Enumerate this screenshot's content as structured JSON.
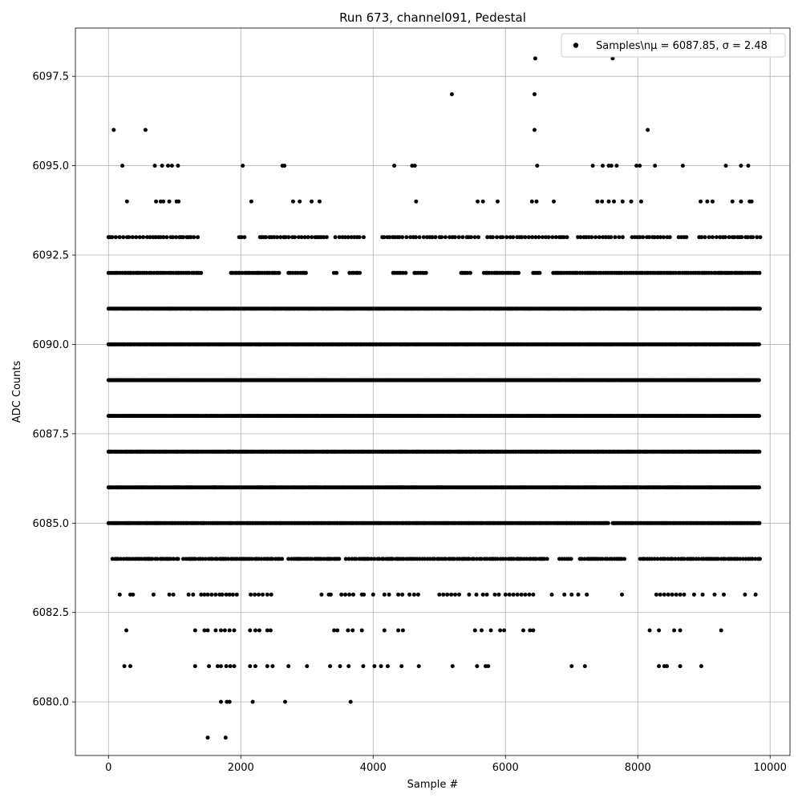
{
  "chart_data": {
    "type": "scatter",
    "title": "Run 673, channel091, Pedestal",
    "xlabel": "Sample #",
    "ylabel": "ADC Counts",
    "xlim": [
      -500,
      10300
    ],
    "ylim": [
      6078.5,
      6098.85
    ],
    "x_ticks": [
      0,
      2000,
      4000,
      6000,
      8000,
      10000
    ],
    "x_tick_labels": [
      "0",
      "2000",
      "4000",
      "6000",
      "8000",
      "10000"
    ],
    "y_ticks": [
      6080.0,
      6082.5,
      6085.0,
      6087.5,
      6090.0,
      6092.5,
      6095.0,
      6097.5
    ],
    "y_tick_labels": [
      "6080.0",
      "6082.5",
      "6085.0",
      "6087.5",
      "6090.0",
      "6092.5",
      "6095.0",
      "6097.5"
    ],
    "grid": true,
    "legend_position": "top-right",
    "marker_color": "#000000",
    "series": [
      {
        "name": "Samples\\nμ = 6087.85, σ = 2.48",
        "x_range": [
          0,
          9850
        ],
        "mean": 6087.85,
        "std": 2.48,
        "dense_levels": [
          6084,
          6085,
          6086,
          6087,
          6088,
          6089,
          6090,
          6091,
          6092,
          6093
        ],
        "points": [
          {
            "x": 80,
            "y": 6096
          },
          {
            "x": 560,
            "y": 6096
          },
          {
            "x": 8150,
            "y": 6096
          },
          {
            "x": 6440,
            "y": 6096
          },
          {
            "x": 5190,
            "y": 6097
          },
          {
            "x": 6440,
            "y": 6097
          },
          {
            "x": 6450,
            "y": 6098
          },
          {
            "x": 7620,
            "y": 6098
          },
          {
            "x": 210,
            "y": 6095
          },
          {
            "x": 700,
            "y": 6095
          },
          {
            "x": 810,
            "y": 6095
          },
          {
            "x": 900,
            "y": 6095
          },
          {
            "x": 960,
            "y": 6095
          },
          {
            "x": 1050,
            "y": 6095
          },
          {
            "x": 2030,
            "y": 6095
          },
          {
            "x": 2630,
            "y": 6095
          },
          {
            "x": 2660,
            "y": 6095
          },
          {
            "x": 4320,
            "y": 6095
          },
          {
            "x": 4590,
            "y": 6095
          },
          {
            "x": 4630,
            "y": 6095
          },
          {
            "x": 6480,
            "y": 6095
          },
          {
            "x": 7320,
            "y": 6095
          },
          {
            "x": 7470,
            "y": 6095
          },
          {
            "x": 7560,
            "y": 6095
          },
          {
            "x": 7600,
            "y": 6095
          },
          {
            "x": 7680,
            "y": 6095
          },
          {
            "x": 7980,
            "y": 6095
          },
          {
            "x": 8030,
            "y": 6095
          },
          {
            "x": 8260,
            "y": 6095
          },
          {
            "x": 8680,
            "y": 6095
          },
          {
            "x": 9330,
            "y": 6095
          },
          {
            "x": 9560,
            "y": 6095
          },
          {
            "x": 9670,
            "y": 6095
          },
          {
            "x": 280,
            "y": 6094
          },
          {
            "x": 720,
            "y": 6094
          },
          {
            "x": 790,
            "y": 6094
          },
          {
            "x": 830,
            "y": 6094
          },
          {
            "x": 920,
            "y": 6094
          },
          {
            "x": 1030,
            "y": 6094
          },
          {
            "x": 1060,
            "y": 6094
          },
          {
            "x": 2160,
            "y": 6094
          },
          {
            "x": 2790,
            "y": 6094
          },
          {
            "x": 2890,
            "y": 6094
          },
          {
            "x": 3070,
            "y": 6094
          },
          {
            "x": 3190,
            "y": 6094
          },
          {
            "x": 4650,
            "y": 6094
          },
          {
            "x": 5580,
            "y": 6094
          },
          {
            "x": 5660,
            "y": 6094
          },
          {
            "x": 5880,
            "y": 6094
          },
          {
            "x": 6400,
            "y": 6094
          },
          {
            "x": 6470,
            "y": 6094
          },
          {
            "x": 6730,
            "y": 6094
          },
          {
            "x": 7390,
            "y": 6094
          },
          {
            "x": 7460,
            "y": 6094
          },
          {
            "x": 7560,
            "y": 6094
          },
          {
            "x": 7640,
            "y": 6094
          },
          {
            "x": 7770,
            "y": 6094
          },
          {
            "x": 7900,
            "y": 6094
          },
          {
            "x": 8050,
            "y": 6094
          },
          {
            "x": 8950,
            "y": 6094
          },
          {
            "x": 9050,
            "y": 6094
          },
          {
            "x": 9130,
            "y": 6094
          },
          {
            "x": 9430,
            "y": 6094
          },
          {
            "x": 9560,
            "y": 6094
          },
          {
            "x": 9690,
            "y": 6094
          },
          {
            "x": 9720,
            "y": 6094
          },
          {
            "x": 170,
            "y": 6083
          },
          {
            "x": 330,
            "y": 6083
          },
          {
            "x": 370,
            "y": 6083
          },
          {
            "x": 680,
            "y": 6083
          },
          {
            "x": 920,
            "y": 6083
          },
          {
            "x": 980,
            "y": 6083
          },
          {
            "x": 1210,
            "y": 6083
          },
          {
            "x": 1280,
            "y": 6083
          },
          {
            "x": 1400,
            "y": 6083
          },
          {
            "x": 1450,
            "y": 6083
          },
          {
            "x": 1500,
            "y": 6083
          },
          {
            "x": 1560,
            "y": 6083
          },
          {
            "x": 1620,
            "y": 6083
          },
          {
            "x": 1680,
            "y": 6083
          },
          {
            "x": 1720,
            "y": 6083
          },
          {
            "x": 1780,
            "y": 6083
          },
          {
            "x": 1830,
            "y": 6083
          },
          {
            "x": 1880,
            "y": 6083
          },
          {
            "x": 1940,
            "y": 6083
          },
          {
            "x": 2150,
            "y": 6083
          },
          {
            "x": 2210,
            "y": 6083
          },
          {
            "x": 2270,
            "y": 6083
          },
          {
            "x": 2330,
            "y": 6083
          },
          {
            "x": 2400,
            "y": 6083
          },
          {
            "x": 2460,
            "y": 6083
          },
          {
            "x": 3220,
            "y": 6083
          },
          {
            "x": 3330,
            "y": 6083
          },
          {
            "x": 3360,
            "y": 6083
          },
          {
            "x": 3520,
            "y": 6083
          },
          {
            "x": 3580,
            "y": 6083
          },
          {
            "x": 3640,
            "y": 6083
          },
          {
            "x": 3700,
            "y": 6083
          },
          {
            "x": 3830,
            "y": 6083
          },
          {
            "x": 3860,
            "y": 6083
          },
          {
            "x": 4000,
            "y": 6083
          },
          {
            "x": 4170,
            "y": 6083
          },
          {
            "x": 4240,
            "y": 6083
          },
          {
            "x": 4380,
            "y": 6083
          },
          {
            "x": 4440,
            "y": 6083
          },
          {
            "x": 4550,
            "y": 6083
          },
          {
            "x": 4620,
            "y": 6083
          },
          {
            "x": 4680,
            "y": 6083
          },
          {
            "x": 5000,
            "y": 6083
          },
          {
            "x": 5060,
            "y": 6083
          },
          {
            "x": 5120,
            "y": 6083
          },
          {
            "x": 5180,
            "y": 6083
          },
          {
            "x": 5240,
            "y": 6083
          },
          {
            "x": 5300,
            "y": 6083
          },
          {
            "x": 5450,
            "y": 6083
          },
          {
            "x": 5560,
            "y": 6083
          },
          {
            "x": 5660,
            "y": 6083
          },
          {
            "x": 5720,
            "y": 6083
          },
          {
            "x": 5840,
            "y": 6083
          },
          {
            "x": 5900,
            "y": 6083
          },
          {
            "x": 6000,
            "y": 6083
          },
          {
            "x": 6060,
            "y": 6083
          },
          {
            "x": 6120,
            "y": 6083
          },
          {
            "x": 6180,
            "y": 6083
          },
          {
            "x": 6240,
            "y": 6083
          },
          {
            "x": 6300,
            "y": 6083
          },
          {
            "x": 6360,
            "y": 6083
          },
          {
            "x": 6420,
            "y": 6083
          },
          {
            "x": 6700,
            "y": 6083
          },
          {
            "x": 6890,
            "y": 6083
          },
          {
            "x": 7000,
            "y": 6083
          },
          {
            "x": 7100,
            "y": 6083
          },
          {
            "x": 7230,
            "y": 6083
          },
          {
            "x": 7760,
            "y": 6083
          },
          {
            "x": 8280,
            "y": 6083
          },
          {
            "x": 8340,
            "y": 6083
          },
          {
            "x": 8400,
            "y": 6083
          },
          {
            "x": 8460,
            "y": 6083
          },
          {
            "x": 8520,
            "y": 6083
          },
          {
            "x": 8580,
            "y": 6083
          },
          {
            "x": 8640,
            "y": 6083
          },
          {
            "x": 8700,
            "y": 6083
          },
          {
            "x": 8850,
            "y": 6083
          },
          {
            "x": 8980,
            "y": 6083
          },
          {
            "x": 9160,
            "y": 6083
          },
          {
            "x": 9300,
            "y": 6083
          },
          {
            "x": 9620,
            "y": 6083
          },
          {
            "x": 9780,
            "y": 6083
          },
          {
            "x": 270,
            "y": 6082
          },
          {
            "x": 1310,
            "y": 6082
          },
          {
            "x": 1450,
            "y": 6082
          },
          {
            "x": 1500,
            "y": 6082
          },
          {
            "x": 1620,
            "y": 6082
          },
          {
            "x": 1700,
            "y": 6082
          },
          {
            "x": 1760,
            "y": 6082
          },
          {
            "x": 1830,
            "y": 6082
          },
          {
            "x": 1900,
            "y": 6082
          },
          {
            "x": 2140,
            "y": 6082
          },
          {
            "x": 2220,
            "y": 6082
          },
          {
            "x": 2280,
            "y": 6082
          },
          {
            "x": 2400,
            "y": 6082
          },
          {
            "x": 2450,
            "y": 6082
          },
          {
            "x": 3410,
            "y": 6082
          },
          {
            "x": 3460,
            "y": 6082
          },
          {
            "x": 3620,
            "y": 6082
          },
          {
            "x": 3690,
            "y": 6082
          },
          {
            "x": 3830,
            "y": 6082
          },
          {
            "x": 4170,
            "y": 6082
          },
          {
            "x": 4380,
            "y": 6082
          },
          {
            "x": 4450,
            "y": 6082
          },
          {
            "x": 5540,
            "y": 6082
          },
          {
            "x": 5640,
            "y": 6082
          },
          {
            "x": 5780,
            "y": 6082
          },
          {
            "x": 5920,
            "y": 6082
          },
          {
            "x": 5980,
            "y": 6082
          },
          {
            "x": 6270,
            "y": 6082
          },
          {
            "x": 6370,
            "y": 6082
          },
          {
            "x": 6420,
            "y": 6082
          },
          {
            "x": 8180,
            "y": 6082
          },
          {
            "x": 8320,
            "y": 6082
          },
          {
            "x": 8550,
            "y": 6082
          },
          {
            "x": 8640,
            "y": 6082
          },
          {
            "x": 9260,
            "y": 6082
          },
          {
            "x": 240,
            "y": 6081
          },
          {
            "x": 330,
            "y": 6081
          },
          {
            "x": 1310,
            "y": 6081
          },
          {
            "x": 1520,
            "y": 6081
          },
          {
            "x": 1650,
            "y": 6081
          },
          {
            "x": 1700,
            "y": 6081
          },
          {
            "x": 1780,
            "y": 6081
          },
          {
            "x": 1840,
            "y": 6081
          },
          {
            "x": 1900,
            "y": 6081
          },
          {
            "x": 2140,
            "y": 6081
          },
          {
            "x": 2220,
            "y": 6081
          },
          {
            "x": 2400,
            "y": 6081
          },
          {
            "x": 2480,
            "y": 6081
          },
          {
            "x": 2720,
            "y": 6081
          },
          {
            "x": 3000,
            "y": 6081
          },
          {
            "x": 3350,
            "y": 6081
          },
          {
            "x": 3500,
            "y": 6081
          },
          {
            "x": 3630,
            "y": 6081
          },
          {
            "x": 3850,
            "y": 6081
          },
          {
            "x": 4020,
            "y": 6081
          },
          {
            "x": 4120,
            "y": 6081
          },
          {
            "x": 4220,
            "y": 6081
          },
          {
            "x": 4430,
            "y": 6081
          },
          {
            "x": 4690,
            "y": 6081
          },
          {
            "x": 5200,
            "y": 6081
          },
          {
            "x": 5570,
            "y": 6081
          },
          {
            "x": 5700,
            "y": 6081
          },
          {
            "x": 5740,
            "y": 6081
          },
          {
            "x": 7000,
            "y": 6081
          },
          {
            "x": 7200,
            "y": 6081
          },
          {
            "x": 8320,
            "y": 6081
          },
          {
            "x": 8400,
            "y": 6081
          },
          {
            "x": 8440,
            "y": 6081
          },
          {
            "x": 8640,
            "y": 6081
          },
          {
            "x": 8960,
            "y": 6081
          },
          {
            "x": 1700,
            "y": 6080
          },
          {
            "x": 1790,
            "y": 6080
          },
          {
            "x": 1830,
            "y": 6080
          },
          {
            "x": 2180,
            "y": 6080
          },
          {
            "x": 2670,
            "y": 6080
          },
          {
            "x": 3660,
            "y": 6080
          },
          {
            "x": 1500,
            "y": 6079
          },
          {
            "x": 1770,
            "y": 6079
          }
        ]
      }
    ]
  }
}
